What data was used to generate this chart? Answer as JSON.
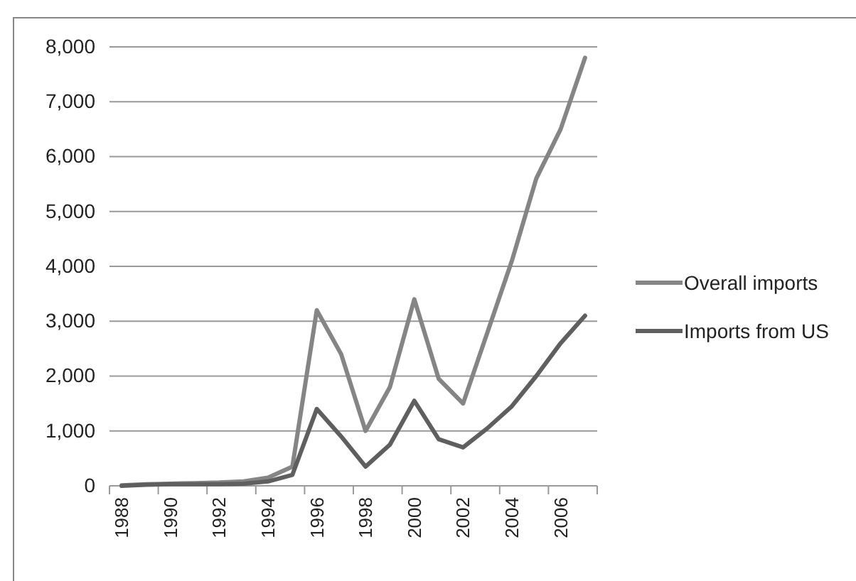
{
  "chart_data": {
    "type": "line",
    "categories": [
      "1988",
      null,
      "1990",
      null,
      "1992",
      null,
      "1994",
      null,
      "1996",
      null,
      "1998",
      null,
      "2000",
      null,
      "2002",
      null,
      "2004",
      null,
      "2006",
      null
    ],
    "series": [
      {
        "name": "Overall imports",
        "color": "#858585",
        "values": [
          10,
          30,
          40,
          50,
          60,
          80,
          150,
          350,
          3200,
          2400,
          1000,
          1800,
          3400,
          1950,
          1500,
          2800,
          4100,
          5600,
          6500,
          7800
        ]
      },
      {
        "name": "Imports from US",
        "color": "#5f5f5f",
        "values": [
          0,
          20,
          30,
          30,
          30,
          40,
          80,
          200,
          1400,
          900,
          350,
          750,
          1550,
          850,
          700,
          1050,
          1450,
          2000,
          2600,
          3100
        ]
      }
    ],
    "ylim": [
      0,
      8000
    ],
    "yticks": [
      {
        "value": 0,
        "label": "0"
      },
      {
        "value": 1000,
        "label": "1,000"
      },
      {
        "value": 2000,
        "label": "2,000"
      },
      {
        "value": 3000,
        "label": "3,000"
      },
      {
        "value": 4000,
        "label": "4,000"
      },
      {
        "value": 5000,
        "label": "5,000"
      },
      {
        "value": 6000,
        "label": "6,000"
      },
      {
        "value": 7000,
        "label": "7,000"
      },
      {
        "value": 8000,
        "label": "8,000"
      }
    ],
    "grid": "y",
    "legend": "right",
    "marker": "none",
    "line_style": "solid"
  }
}
